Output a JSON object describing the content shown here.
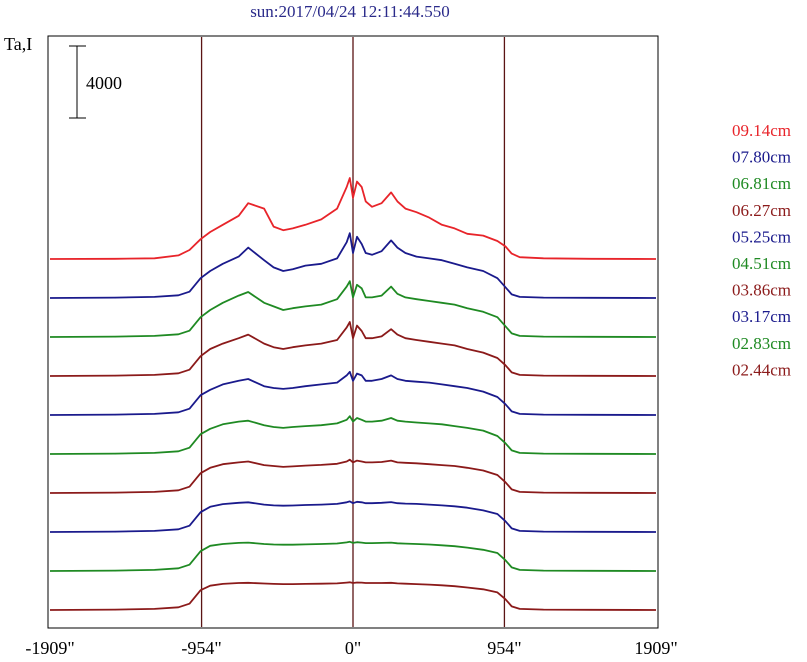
{
  "header": {
    "title": "sun:2017/04/24 12:11:44.550",
    "ylabel": "Ta,I"
  },
  "scale_bar": {
    "label": "4000",
    "value": 4000
  },
  "chart_data": {
    "type": "line",
    "title": "sun:2017/04/24 12:11:44.550",
    "ylabel": "Ta,I",
    "xlabel": "",
    "x_ticks": [
      "-1909\"",
      "-954\"",
      "0\"",
      "954\"",
      "1909\""
    ],
    "x_tick_values": [
      -1909,
      -954,
      0,
      954,
      1909
    ],
    "xlim": [
      -1909,
      1909
    ],
    "vertical_lines": [
      -954,
      0,
      954
    ],
    "grid": false,
    "legend_position": "right",
    "scale_bar_units": 4000,
    "series": [
      {
        "name": "09.14cm",
        "color": "#e8242a",
        "baseline": 0,
        "x": [
          -1909,
          -1500,
          -1250,
          -1100,
          -1030,
          -960,
          -900,
          -820,
          -720,
          -660,
          -560,
          -500,
          -440,
          -380,
          -300,
          -200,
          -100,
          -40,
          -20,
          0,
          25,
          55,
          80,
          120,
          180,
          240,
          280,
          330,
          400,
          480,
          560,
          640,
          720,
          820,
          910,
          960,
          1000,
          1050,
          1200,
          1500,
          1909
        ],
        "y": [
          0,
          10,
          40,
          200,
          500,
          1100,
          1500,
          1900,
          2400,
          3100,
          2800,
          1800,
          1600,
          1700,
          1900,
          2200,
          2800,
          4000,
          4500,
          3400,
          4300,
          4000,
          3200,
          2900,
          3100,
          3700,
          3200,
          2800,
          2600,
          2300,
          1900,
          1700,
          1400,
          1300,
          1000,
          700,
          300,
          100,
          40,
          10,
          0
        ]
      },
      {
        "name": "07.80cm",
        "color": "#1a1a8c",
        "baseline": 0,
        "x": [
          -1909,
          -1500,
          -1250,
          -1100,
          -1030,
          -960,
          -900,
          -820,
          -720,
          -660,
          -560,
          -500,
          -440,
          -380,
          -300,
          -200,
          -100,
          -40,
          -20,
          0,
          25,
          55,
          80,
          120,
          180,
          240,
          280,
          330,
          400,
          480,
          560,
          640,
          720,
          820,
          910,
          960,
          1000,
          1050,
          1200,
          1500,
          1909
        ],
        "y": [
          0,
          20,
          60,
          150,
          350,
          1100,
          1500,
          1900,
          2300,
          2800,
          2100,
          1700,
          1500,
          1600,
          1800,
          1900,
          2200,
          3100,
          3600,
          2500,
          3400,
          3000,
          2500,
          2400,
          2600,
          3200,
          2800,
          2500,
          2300,
          2200,
          2100,
          1900,
          1700,
          1500,
          1100,
          600,
          200,
          60,
          20,
          10,
          0
        ]
      },
      {
        "name": "06.81cm",
        "color": "#1f8a23",
        "baseline": 0,
        "x": [
          -1909,
          -1500,
          -1250,
          -1100,
          -1030,
          -960,
          -900,
          -820,
          -720,
          -660,
          -560,
          -500,
          -440,
          -380,
          -300,
          -200,
          -100,
          -40,
          -20,
          0,
          25,
          55,
          80,
          120,
          180,
          240,
          280,
          330,
          400,
          480,
          560,
          640,
          720,
          820,
          910,
          960,
          1000,
          1050,
          1200,
          1500,
          1909
        ],
        "y": [
          0,
          20,
          60,
          150,
          350,
          1100,
          1500,
          1900,
          2300,
          2500,
          1900,
          1700,
          1500,
          1600,
          1700,
          1800,
          2100,
          2800,
          3100,
          2200,
          2900,
          2700,
          2200,
          2200,
          2300,
          2800,
          2400,
          2200,
          2100,
          2000,
          1900,
          1800,
          1600,
          1400,
          1100,
          600,
          200,
          60,
          20,
          10,
          0
        ]
      },
      {
        "name": "06.27cm",
        "color": "#8b1a1a",
        "baseline": 0,
        "x": [
          -1909,
          -1500,
          -1250,
          -1100,
          -1030,
          -960,
          -900,
          -820,
          -720,
          -660,
          -560,
          -500,
          -440,
          -380,
          -300,
          -200,
          -100,
          -40,
          -20,
          0,
          25,
          55,
          80,
          120,
          180,
          240,
          280,
          330,
          400,
          480,
          560,
          640,
          720,
          820,
          910,
          960,
          1000,
          1050,
          1200,
          1500,
          1909
        ],
        "y": [
          0,
          20,
          60,
          150,
          350,
          1100,
          1500,
          1800,
          2100,
          2300,
          1800,
          1600,
          1500,
          1600,
          1700,
          1800,
          2000,
          2700,
          3000,
          2100,
          2800,
          2500,
          2100,
          2100,
          2200,
          2600,
          2300,
          2100,
          2000,
          1900,
          1800,
          1700,
          1500,
          1300,
          1000,
          600,
          200,
          60,
          20,
          10,
          0
        ]
      },
      {
        "name": "05.25cm",
        "color": "#1a1a8c",
        "baseline": 0,
        "x": [
          -1909,
          -1500,
          -1250,
          -1100,
          -1030,
          -960,
          -900,
          -820,
          -720,
          -660,
          -560,
          -500,
          -440,
          -380,
          -300,
          -200,
          -100,
          -40,
          -20,
          0,
          25,
          55,
          80,
          120,
          180,
          240,
          280,
          330,
          400,
          480,
          560,
          640,
          720,
          820,
          910,
          960,
          1000,
          1050,
          1200,
          1500,
          1909
        ],
        "y": [
          0,
          20,
          60,
          150,
          350,
          1100,
          1400,
          1700,
          1900,
          2000,
          1600,
          1500,
          1450,
          1500,
          1600,
          1700,
          1800,
          2200,
          2400,
          1900,
          2300,
          2200,
          1900,
          1900,
          2000,
          2200,
          2000,
          1900,
          1850,
          1800,
          1700,
          1600,
          1500,
          1300,
          1000,
          600,
          200,
          60,
          20,
          10,
          0
        ]
      },
      {
        "name": "04.51cm",
        "color": "#1f8a23",
        "baseline": 0,
        "x": [
          -1909,
          -1500,
          -1250,
          -1100,
          -1030,
          -960,
          -900,
          -820,
          -720,
          -660,
          -560,
          -500,
          -440,
          -380,
          -300,
          -200,
          -100,
          -40,
          -20,
          0,
          25,
          55,
          80,
          120,
          180,
          240,
          280,
          330,
          400,
          480,
          560,
          640,
          720,
          820,
          910,
          960,
          1000,
          1050,
          1200,
          1500,
          1909
        ],
        "y": [
          0,
          20,
          60,
          150,
          350,
          1100,
          1400,
          1650,
          1800,
          1850,
          1600,
          1500,
          1450,
          1500,
          1550,
          1600,
          1700,
          1900,
          2100,
          1800,
          2000,
          1900,
          1800,
          1800,
          1850,
          2000,
          1850,
          1800,
          1750,
          1700,
          1650,
          1550,
          1450,
          1300,
          1000,
          600,
          200,
          60,
          20,
          10,
          0
        ]
      },
      {
        "name": "03.86cm",
        "color": "#8b1a1a",
        "baseline": 0,
        "x": [
          -1909,
          -1500,
          -1250,
          -1100,
          -1030,
          -960,
          -900,
          -820,
          -720,
          -660,
          -560,
          -500,
          -440,
          -380,
          -300,
          -200,
          -100,
          -40,
          -20,
          0,
          25,
          55,
          80,
          120,
          180,
          240,
          280,
          330,
          400,
          480,
          560,
          640,
          720,
          820,
          910,
          960,
          1000,
          1050,
          1200,
          1500,
          1909
        ],
        "y": [
          0,
          20,
          60,
          150,
          350,
          1100,
          1400,
          1600,
          1700,
          1750,
          1550,
          1500,
          1450,
          1480,
          1520,
          1560,
          1620,
          1750,
          1850,
          1700,
          1800,
          1750,
          1700,
          1700,
          1720,
          1800,
          1700,
          1680,
          1650,
          1600,
          1550,
          1500,
          1400,
          1250,
          1000,
          600,
          200,
          60,
          20,
          10,
          0
        ]
      },
      {
        "name": "03.17cm",
        "color": "#1a1a8c",
        "baseline": 0,
        "x": [
          -1909,
          -1500,
          -1250,
          -1100,
          -1030,
          -960,
          -900,
          -820,
          -720,
          -660,
          -560,
          -500,
          -440,
          -380,
          -300,
          -200,
          -100,
          -40,
          -20,
          0,
          25,
          55,
          80,
          120,
          180,
          240,
          280,
          330,
          400,
          480,
          560,
          640,
          720,
          820,
          910,
          960,
          1000,
          1050,
          1200,
          1500,
          1909
        ],
        "y": [
          0,
          20,
          60,
          150,
          350,
          1100,
          1400,
          1550,
          1620,
          1650,
          1520,
          1480,
          1460,
          1470,
          1500,
          1520,
          1560,
          1650,
          1700,
          1600,
          1680,
          1650,
          1600,
          1600,
          1620,
          1660,
          1600,
          1580,
          1560,
          1520,
          1480,
          1430,
          1350,
          1200,
          1000,
          600,
          200,
          60,
          20,
          10,
          0
        ]
      },
      {
        "name": "02.83cm",
        "color": "#1f8a23",
        "baseline": 0,
        "x": [
          -1909,
          -1500,
          -1250,
          -1100,
          -1030,
          -960,
          -900,
          -820,
          -720,
          -660,
          -560,
          -500,
          -440,
          -380,
          -300,
          -200,
          -100,
          -40,
          -20,
          0,
          25,
          55,
          80,
          120,
          180,
          240,
          280,
          330,
          400,
          480,
          560,
          640,
          720,
          820,
          910,
          960,
          1000,
          1050,
          1200,
          1500,
          1909
        ],
        "y": [
          0,
          20,
          60,
          150,
          350,
          1100,
          1400,
          1500,
          1560,
          1580,
          1500,
          1470,
          1460,
          1460,
          1480,
          1500,
          1530,
          1590,
          1620,
          1560,
          1600,
          1580,
          1550,
          1550,
          1560,
          1580,
          1540,
          1520,
          1500,
          1470,
          1430,
          1380,
          1300,
          1180,
          1000,
          600,
          200,
          60,
          20,
          10,
          0
        ]
      },
      {
        "name": "02.44cm",
        "color": "#8b1a1a",
        "baseline": 0,
        "x": [
          -1909,
          -1500,
          -1250,
          -1100,
          -1030,
          -960,
          -900,
          -820,
          -720,
          -660,
          -560,
          -500,
          -440,
          -380,
          -300,
          -200,
          -100,
          -40,
          -20,
          0,
          25,
          55,
          80,
          120,
          180,
          240,
          280,
          330,
          400,
          480,
          560,
          640,
          720,
          820,
          910,
          960,
          1000,
          1050,
          1200,
          1500,
          1909
        ],
        "y": [
          0,
          20,
          60,
          150,
          350,
          1100,
          1350,
          1450,
          1500,
          1510,
          1470,
          1450,
          1440,
          1440,
          1450,
          1460,
          1480,
          1520,
          1540,
          1500,
          1530,
          1520,
          1500,
          1500,
          1500,
          1510,
          1480,
          1460,
          1440,
          1410,
          1370,
          1320,
          1250,
          1150,
          980,
          600,
          200,
          60,
          20,
          10,
          0
        ]
      }
    ]
  }
}
